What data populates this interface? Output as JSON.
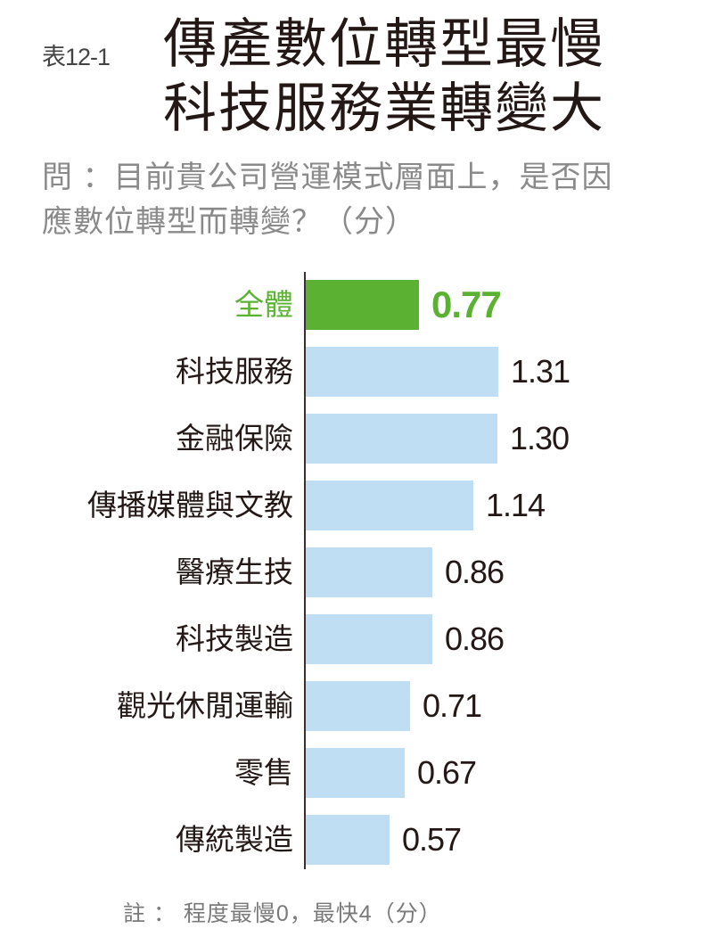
{
  "header": {
    "table_number": "表12-1",
    "title_line1": "傳產數位轉型最慢",
    "title_line2": "科技服務業轉變大",
    "question_line1": "問 ：目前貴公司營運模式層面上，是否因",
    "question_line2": "應數位轉型而轉變？（分）"
  },
  "footer": {
    "note": "註 ： 程度最慢0，最快4（分）"
  },
  "colors": {
    "highlight": "#5bb132",
    "bar": "#bfdef3",
    "axis": "#3a3030",
    "text": "#231815"
  },
  "chart_data": {
    "type": "bar",
    "orientation": "horizontal",
    "title": "傳產數位轉型最慢 科技服務業轉變大",
    "subtitle": "問：目前貴公司營運模式層面上，是否因應數位轉型而轉變？（分）",
    "xlabel": "",
    "ylabel": "",
    "xlim": [
      0,
      4
    ],
    "grid": false,
    "legend": null,
    "categories": [
      "全體",
      "科技服務",
      "金融保險",
      "傳播媒體與文教",
      "醫療生技",
      "科技製造",
      "觀光休閒運輸",
      "零售",
      "傳統製造"
    ],
    "values": [
      0.77,
      1.31,
      1.3,
      1.14,
      0.86,
      0.86,
      0.71,
      0.67,
      0.57
    ],
    "value_labels": [
      "0.77",
      "1.31",
      "1.30",
      "1.14",
      "0.86",
      "0.86",
      "0.71",
      "0.67",
      "0.57"
    ],
    "highlighted_category": "全體",
    "annotations": [
      "註：程度最慢0，最快4（分）"
    ]
  }
}
